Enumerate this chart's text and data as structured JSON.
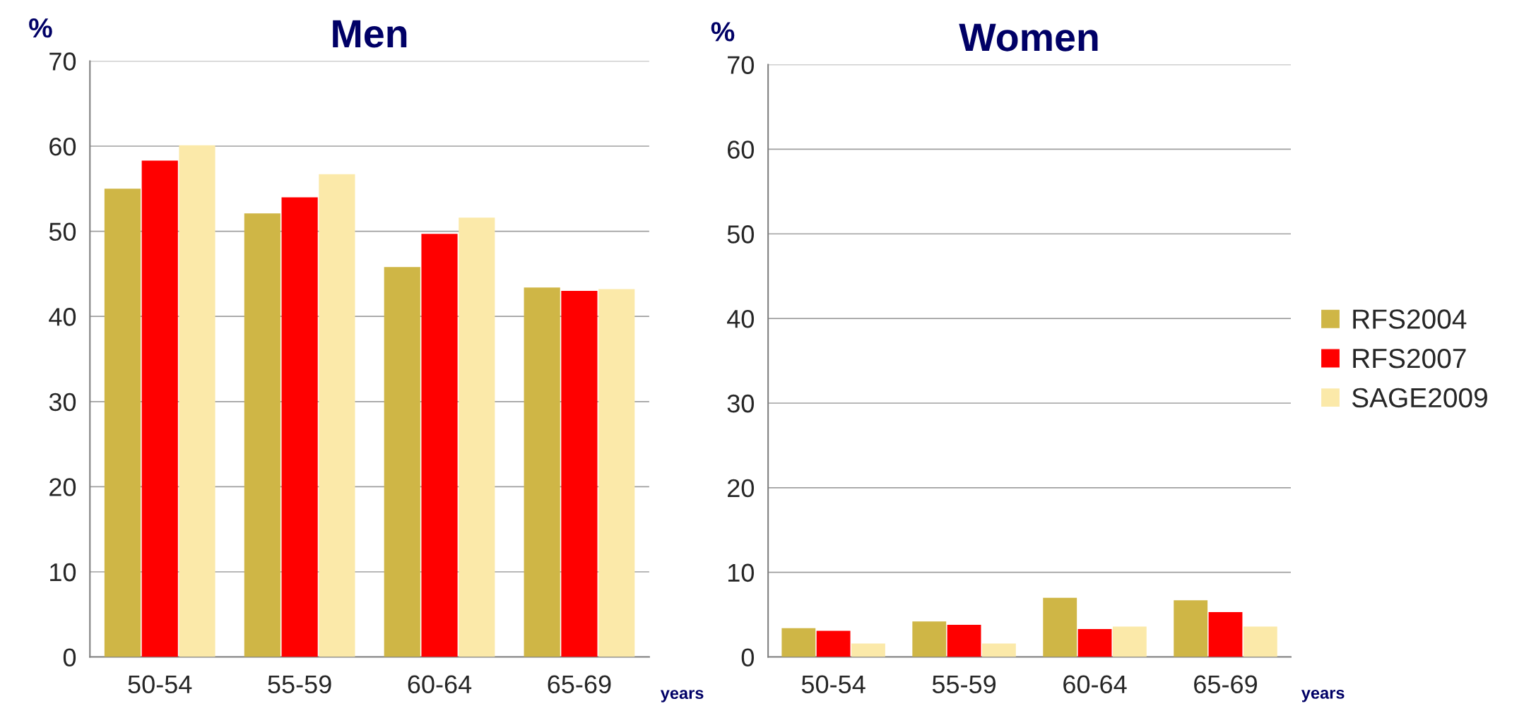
{
  "chart_data": [
    {
      "type": "bar",
      "title": "Men",
      "ylabel": "%",
      "xlabel": "years",
      "categories": [
        "50-54",
        "55-59",
        "60-64",
        "65-69"
      ],
      "series": [
        {
          "color": "#cfb646",
          "values": [
            55.0,
            52.1,
            45.8,
            43.4
          ]
        },
        {
          "color": "#ff0000",
          "values": [
            58.3,
            54.0,
            49.7,
            43.0
          ]
        },
        {
          "color": "#fbe9a9",
          "values": [
            60.1,
            56.7,
            51.6,
            43.2
          ]
        }
      ],
      "ylim": [
        0,
        70
      ],
      "yticks": [
        0,
        10,
        20,
        30,
        40,
        50,
        60,
        70
      ],
      "grid": "y"
    },
    {
      "type": "bar",
      "title": "Women",
      "ylabel": "%",
      "xlabel": "years",
      "categories": [
        "50-54",
        "55-59",
        "60-64",
        "65-69"
      ],
      "series": [
        {
          "name": "RFS2004",
          "color": "#cfb646",
          "values": [
            3.4,
            4.2,
            7.0,
            6.7
          ]
        },
        {
          "name": "RFS2007",
          "color": "#ff0000",
          "values": [
            3.1,
            3.8,
            3.3,
            5.3
          ]
        },
        {
          "name": "SAGE2009",
          "color": "#fbe9a9",
          "values": [
            1.6,
            1.6,
            3.6,
            3.6
          ]
        }
      ],
      "ylim": [
        0,
        70
      ],
      "yticks": [
        0,
        10,
        20,
        30,
        40,
        50,
        60,
        70
      ],
      "grid": "y",
      "legend": "right"
    }
  ]
}
